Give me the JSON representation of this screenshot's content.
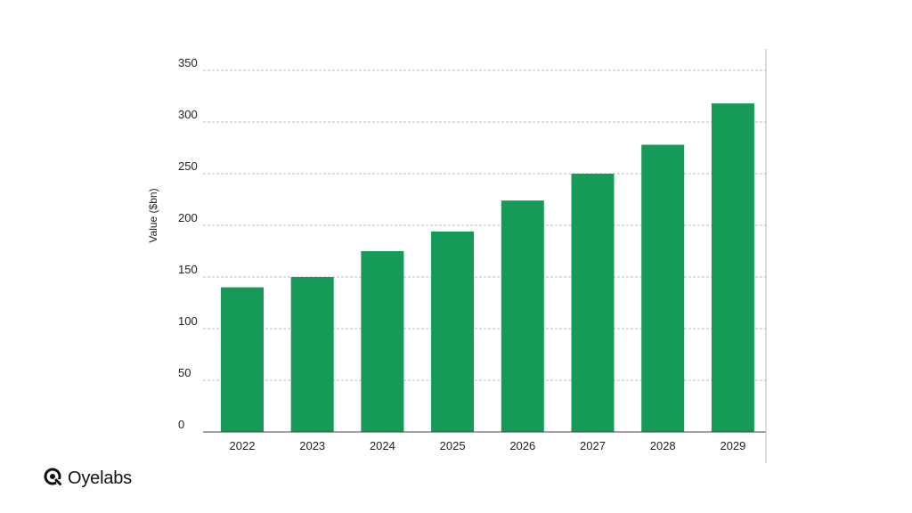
{
  "chart_data": {
    "type": "bar",
    "categories": [
      "2022",
      "2023",
      "2024",
      "2025",
      "2026",
      "2027",
      "2028",
      "2029"
    ],
    "values": [
      140,
      150,
      175,
      194,
      224,
      250,
      278,
      318
    ],
    "ylabel": "Value ($bn)",
    "xlabel": "",
    "title": "",
    "ylim": [
      0,
      350
    ],
    "yticks": [
      0,
      50,
      100,
      150,
      200,
      250,
      300,
      350
    ],
    "grid": true,
    "bar_color": "#159a57"
  },
  "brand": {
    "name": "Oyelabs",
    "logo_icon": "oyelabs-logo-icon"
  }
}
